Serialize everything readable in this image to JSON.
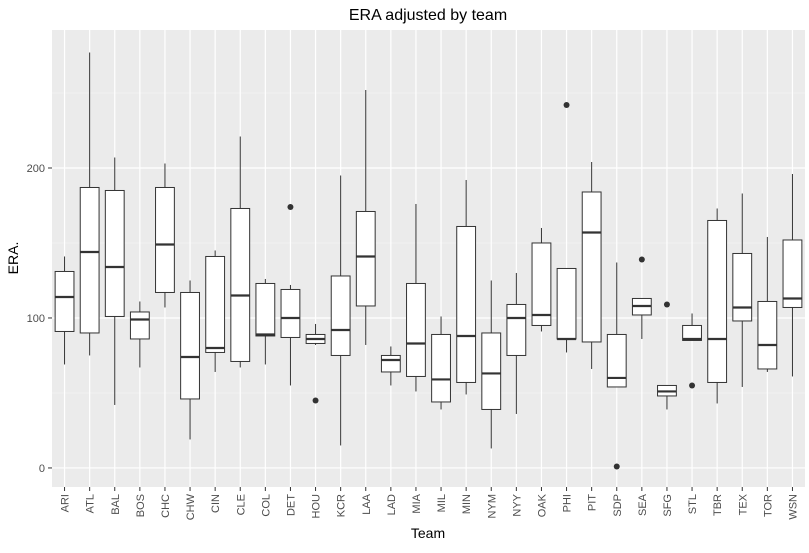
{
  "chart_data": {
    "type": "boxplot",
    "title": "ERA adjusted by team",
    "x_label": "Team",
    "y_label": "ERA.",
    "categories": [
      "ARI",
      "ATL",
      "BAL",
      "BOS",
      "CHC",
      "CHW",
      "CIN",
      "CLE",
      "COL",
      "DET",
      "HOU",
      "KCR",
      "LAA",
      "LAD",
      "MIA",
      "MIL",
      "MIN",
      "NYM",
      "NYY",
      "OAK",
      "PHI",
      "PIT",
      "SDP",
      "SEA",
      "SFG",
      "STL",
      "TBR",
      "TEX",
      "TOR",
      "WSN"
    ],
    "min": [
      69,
      75,
      42,
      67,
      107,
      19,
      64,
      67,
      69,
      55,
      82,
      15,
      82,
      55,
      51,
      39,
      49,
      13,
      36,
      91,
      77,
      66,
      54,
      86,
      39,
      85,
      43,
      54,
      64,
      61
    ],
    "q1": [
      91,
      90,
      101,
      86,
      117,
      46,
      77,
      71,
      88,
      87,
      83,
      75,
      108,
      64,
      61,
      44,
      57,
      39,
      75,
      95,
      86,
      84,
      54,
      102,
      48,
      85,
      57,
      98,
      66,
      107
    ],
    "median": [
      114,
      144,
      134,
      99,
      149,
      74,
      80,
      115,
      89,
      100,
      86,
      92,
      141,
      72,
      83,
      59,
      88,
      63,
      100,
      102,
      86,
      157,
      60,
      108,
      51,
      86,
      86,
      107,
      82,
      113
    ],
    "q3": [
      131,
      187,
      185,
      104,
      187,
      117,
      141,
      173,
      123,
      119,
      89,
      128,
      171,
      75,
      123,
      89,
      161,
      90,
      109,
      150,
      133,
      184,
      89,
      113,
      55,
      95,
      165,
      143,
      111,
      152
    ],
    "max": [
      141,
      277,
      207,
      111,
      203,
      125,
      145,
      221,
      126,
      122,
      96,
      195,
      252,
      81,
      176,
      101,
      192,
      125,
      130,
      160,
      133,
      204,
      137,
      113,
      55,
      103,
      173,
      183,
      154,
      196
    ],
    "outliers": [
      [],
      [],
      [],
      [],
      [],
      [],
      [],
      [],
      [],
      [
        174
      ],
      [
        45
      ],
      [],
      [],
      [],
      [],
      [],
      [],
      [],
      [],
      [],
      [
        242
      ],
      [],
      [
        1
      ],
      [
        139
      ],
      [
        109
      ],
      [
        55
      ],
      [],
      [],
      [],
      []
    ],
    "fill": "#ffffff",
    "color": "#333333",
    "ylim": [
      -12.7,
      292
    ],
    "yticks": [
      0,
      100,
      200
    ],
    "y_minor_grid": [
      50,
      150,
      250
    ],
    "grid": true
  }
}
